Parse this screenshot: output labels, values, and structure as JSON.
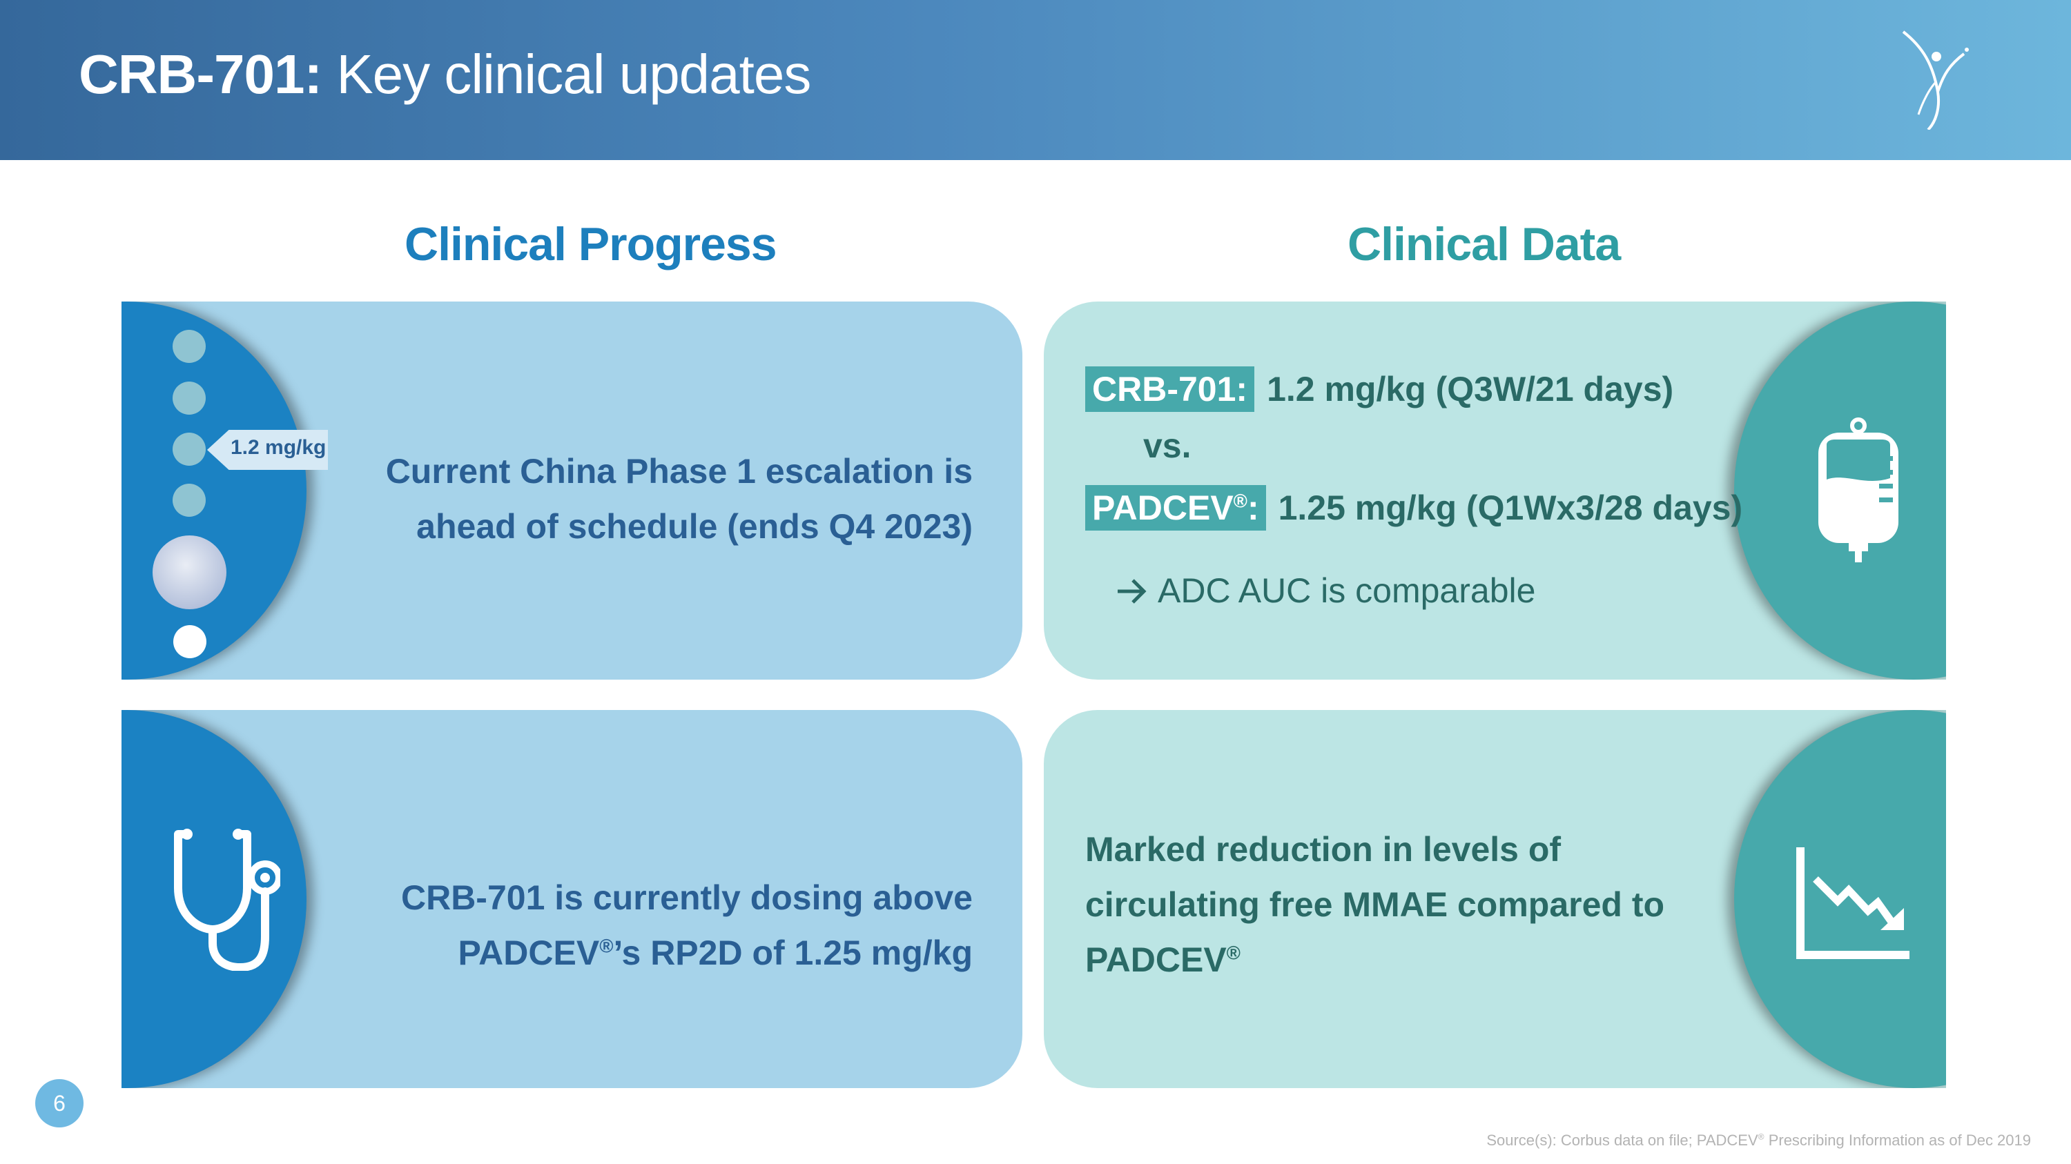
{
  "header": {
    "title_bold": "CRB-701:",
    "title_rest": "Key clinical updates"
  },
  "sections": {
    "left_heading": "Clinical Progress",
    "right_heading": "Clinical Data"
  },
  "progress_card": {
    "dose_label": "1.2 mg/kg",
    "line1": "Current China Phase 1 escalation is",
    "line2": "ahead of schedule (ends Q4 2023)"
  },
  "dosing_card": {
    "line1": "CRB-701 is currently dosing above",
    "line2_part1": "PADCEV",
    "line2_sup": "®",
    "line2_part2": "’s RP2D of 1.25 mg/kg"
  },
  "data_card": {
    "tag1": "CRB-701:",
    "value1": "1.2 mg/kg (Q3W/21 days)",
    "vs": "vs.",
    "tag2": "PADCEV",
    "tag2_sup": "®",
    "tag2_colon": ":",
    "value2": "1.25 mg/kg (Q1Wx3/28 days)",
    "conclusion": "ADC AUC is comparable"
  },
  "mmae_card": {
    "line1": "Marked reduction in levels of",
    "line2": "circulating free MMAE compared to",
    "line3": "PADCEV",
    "line3_sup": "®"
  },
  "footer": {
    "page_number": "6",
    "source_part1": "Source(s): Corbus data on file; PADCEV",
    "source_sup": "®",
    "source_part2": " Prescribing Information as of Dec 2019"
  },
  "icons": [
    "logo-figure-icon",
    "dose-escalation-icon",
    "stethoscope-icon",
    "iv-bag-icon",
    "declining-chart-icon",
    "arrow-right-icon"
  ],
  "colors": {
    "header_start": "#35689b",
    "header_end": "#6db6dc",
    "left_card": "#a6d3ea",
    "left_cap": "#1b82c3",
    "right_card": "#bce5e4",
    "right_cap": "#47a9ab",
    "left_text": "#2a5f94",
    "right_text": "#2a6a66"
  }
}
